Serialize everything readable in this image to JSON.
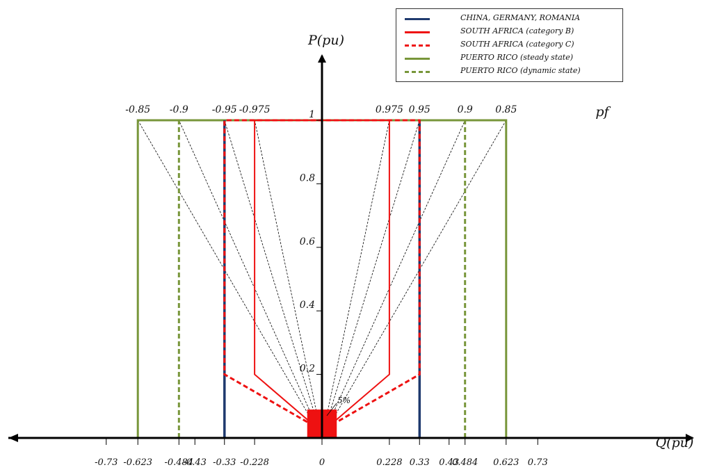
{
  "chart_data": {
    "type": "line",
    "title": "",
    "xlabel": "Q(pu)",
    "ylabel": "P(pu)",
    "pf_label": "pf",
    "xlim": [
      -0.85,
      0.83
    ],
    "ylim": [
      0,
      1.25
    ],
    "x_ticks": [
      -0.73,
      -0.623,
      -0.484,
      -0.43,
      -0.33,
      -0.228,
      0,
      0.228,
      0.33,
      0.43,
      0.484,
      0.623,
      0.73
    ],
    "x_tick_labels": [
      "-0.73",
      "-0.623",
      "-0.484",
      "-0.43",
      "-0.33",
      "-0.228",
      "0",
      "0.228",
      "0.33",
      "0.43",
      "0.484",
      "0.623",
      "0.73"
    ],
    "y_ticks": [
      0.2,
      0.4,
      0.6,
      0.8,
      1
    ],
    "y_tick_labels": [
      "0.2",
      "0.4",
      "0.6",
      "0.8",
      "1"
    ],
    "pf_ticks": [
      {
        "q": -0.623,
        "label": "-0.85"
      },
      {
        "q": -0.484,
        "label": "-0.9"
      },
      {
        "q": -0.33,
        "label": "-0.95"
      },
      {
        "q": -0.228,
        "label": "-0.975"
      },
      {
        "q": 0.228,
        "label": "0.975"
      },
      {
        "q": 0.33,
        "label": "0.95"
      },
      {
        "q": 0.484,
        "label": "0.9"
      },
      {
        "q": 0.623,
        "label": "0.85"
      }
    ],
    "annotation": "5%",
    "dead_band": {
      "q_min": -0.05,
      "q_max": 0.05,
      "p_min": 0,
      "p_max": 0.05,
      "color": "#ee1111"
    },
    "series": [
      {
        "name": "CHINA, GERMANY, ROMANIA",
        "color": "#1f3a6e",
        "dash": "solid",
        "paths": [
          [
            [
              -0.33,
              0
            ],
            [
              -0.33,
              1
            ]
          ],
          [
            [
              0.33,
              0
            ],
            [
              0.33,
              1
            ]
          ]
        ]
      },
      {
        "name": "SOUTH AFRICA (category B)",
        "color": "#ee1111",
        "dash": "solid",
        "paths": [
          [
            [
              -0.04,
              0.05
            ],
            [
              -0.228,
              0.2
            ],
            [
              -0.228,
              1
            ],
            [
              0.228,
              1
            ],
            [
              0.228,
              0.2
            ],
            [
              0.04,
              0.05
            ]
          ]
        ]
      },
      {
        "name": "SOUTH AFRICA (category C)",
        "color": "#ee1111",
        "dash": "dashed",
        "paths": [
          [
            [
              -0.05,
              0.05
            ],
            [
              -0.33,
              0.2
            ],
            [
              -0.33,
              1
            ],
            [
              0.33,
              1
            ],
            [
              0.33,
              0.2
            ],
            [
              0.05,
              0.05
            ]
          ]
        ]
      },
      {
        "name": "PUERTO RICO (steady state)",
        "color": "#78963a",
        "dash": "solid",
        "paths": [
          [
            [
              -0.623,
              0
            ],
            [
              -0.623,
              1
            ],
            [
              0.623,
              1
            ],
            [
              0.623,
              0
            ]
          ]
        ]
      },
      {
        "name": "PUERTO RICO (dynamic state)",
        "color": "#78963a",
        "dash": "dashed",
        "paths": [
          [
            [
              -0.484,
              0
            ],
            [
              -0.484,
              1
            ]
          ],
          [
            [
              0.484,
              0
            ],
            [
              0.484,
              1
            ]
          ]
        ]
      }
    ],
    "guide_lines_q_at_p1": [
      -0.623,
      -0.484,
      -0.33,
      -0.228,
      0.228,
      0.33,
      0.484,
      0.623
    ],
    "legend_position": "top-right"
  }
}
